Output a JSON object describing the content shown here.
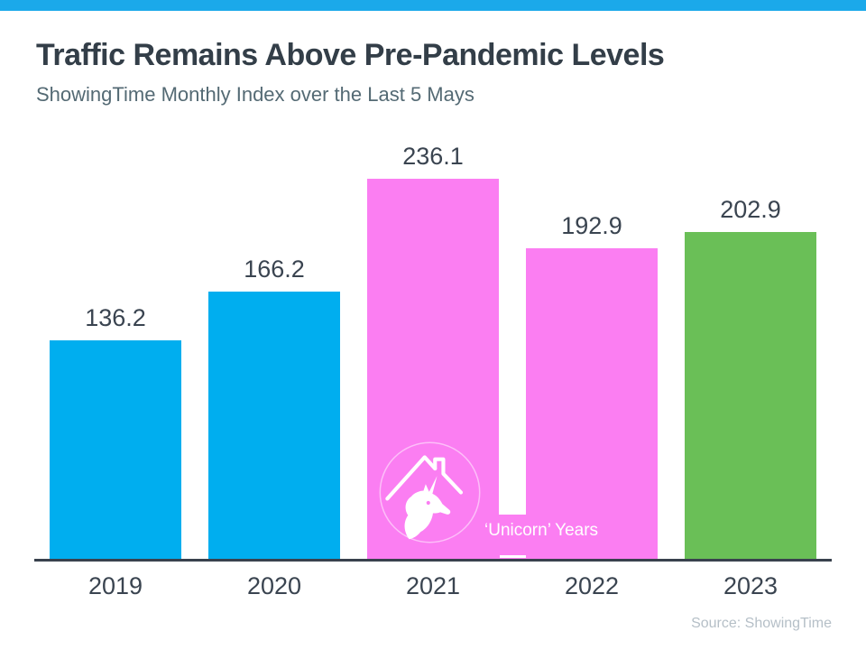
{
  "header": {
    "title": "Traffic Remains Above Pre-Pandemic Levels",
    "subtitle": "ShowingTime Monthly Index over the Last 5 Mays"
  },
  "chart_data": {
    "type": "bar",
    "title": "Traffic Remains Above Pre-Pandemic Levels",
    "subtitle": "ShowingTime Monthly Index over the Last 5 Mays",
    "categories": [
      "2019",
      "2020",
      "2021",
      "2022",
      "2023"
    ],
    "values": [
      136.2,
      166.2,
      236.1,
      192.9,
      202.9
    ],
    "value_labels": [
      "136.2",
      "166.2",
      "236.1",
      "192.9",
      "202.9"
    ],
    "bar_colors": [
      "#00AEEF",
      "#00AEEF",
      "#FB7EF2",
      "#FB7EF2",
      "#6ABF57"
    ],
    "xlabel": "",
    "ylabel": "",
    "ylim": [
      0,
      260
    ],
    "grid": false,
    "legend": false,
    "data_labels": true,
    "annotation": {
      "label": "‘Unicorn’ Years",
      "applies_to": [
        "2021",
        "2022"
      ],
      "icon": "unicorn-house-icon",
      "background": "#FB7EF2",
      "text_color": "#FFFFFF"
    }
  },
  "footer": {
    "source": "Source: ShowingTime"
  },
  "colors": {
    "page_bg": "#FFFFFF",
    "accent_top_bar": "#1BA9EA",
    "blue_bar": "#00AEEF",
    "pink_bar": "#FB7EF2",
    "green_bar": "#6ABF57",
    "title_text": "#333E48",
    "subtitle_text": "#546A74",
    "label_text": "#3A4450",
    "axis_line": "#39414D",
    "annotation_text": "#FFFFFF",
    "source_text": "#B5BFC7"
  }
}
